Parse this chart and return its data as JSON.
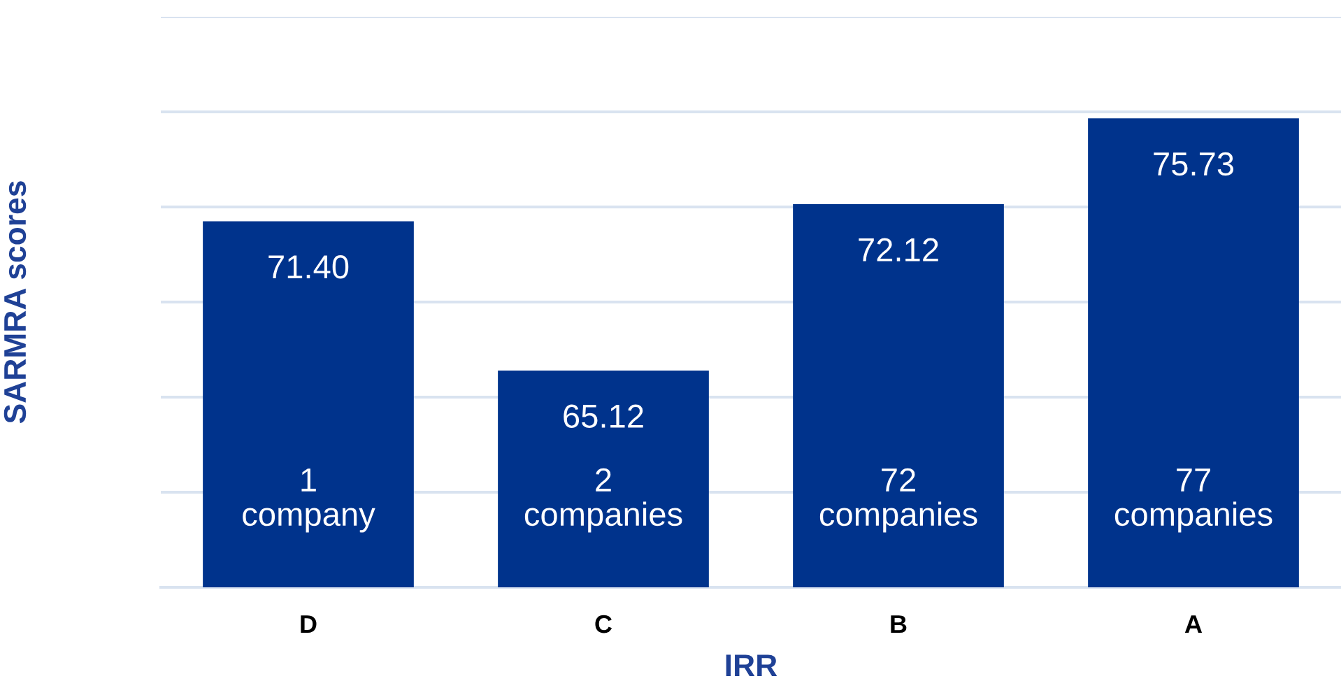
{
  "chart_data": {
    "type": "bar",
    "xlabel": "IRR",
    "ylabel": "SARMRA scores",
    "categories": [
      "D",
      "C",
      "B",
      "A"
    ],
    "values": [
      71.4,
      65.12,
      72.12,
      75.73
    ],
    "value_labels": [
      "71.40",
      "65.12",
      "72.12",
      "75.73"
    ],
    "color": "#00338c",
    "ylim": [
      56,
      80
    ],
    "yticks": [
      56,
      60,
      64,
      68,
      72,
      76,
      80
    ],
    "tick_labels": "x",
    "grid": "y",
    "legend": false,
    "annotations": [
      "1\ncompany",
      "2\ncompanies",
      "72\ncompanies",
      "77\ncompanies"
    ]
  }
}
